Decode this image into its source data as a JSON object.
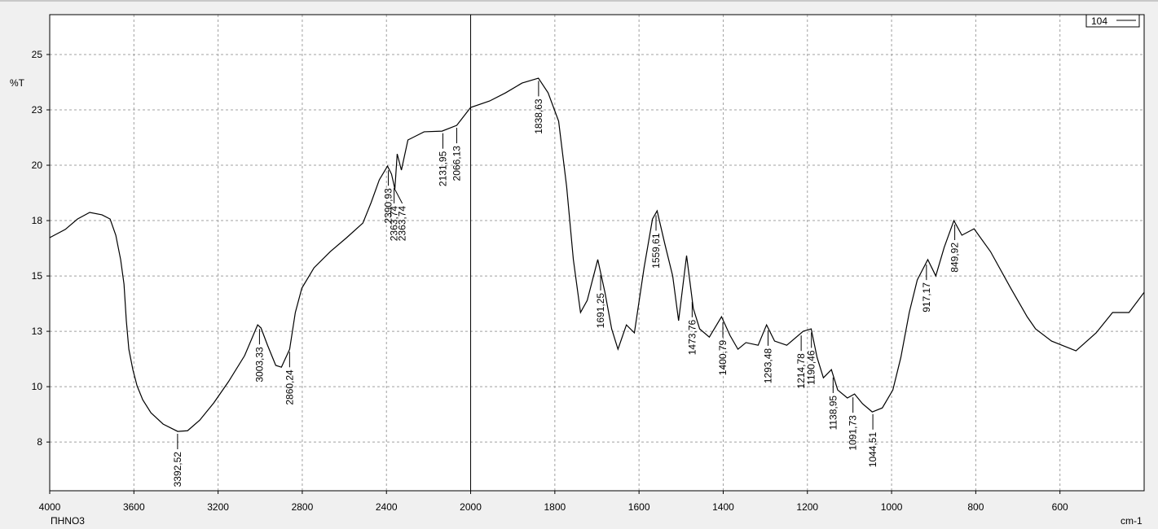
{
  "chart_data": {
    "type": "line",
    "x_label": "cm-1",
    "y_label": "%T",
    "sample_label": "ПHNO3",
    "xlim": [
      4000,
      400
    ],
    "x_break": {
      "at": 2000,
      "scale": 2
    },
    "xticks": [
      4000,
      3600,
      3200,
      2800,
      2400,
      2000,
      1800,
      1600,
      1400,
      1200,
      1000,
      800,
      600
    ],
    "ylim": [
      5.3,
      26.8
    ],
    "yticks": [
      {
        "value": 7.5,
        "label": "8"
      },
      10,
      {
        "value": 12.5,
        "label": "13"
      },
      15,
      {
        "value": 17.5,
        "label": "18"
      },
      20,
      {
        "value": 22.5,
        "label": "23"
      },
      25
    ],
    "grid": true,
    "legend_position": "top-right",
    "x": [
      4000,
      3926,
      3868,
      3810,
      3752,
      3713,
      3686,
      3663,
      3647,
      3636,
      3624,
      3605,
      3585,
      3558,
      3519,
      3461,
      3392,
      3345,
      3287,
      3221,
      3151,
      3074,
      3012,
      2996,
      2965,
      2926,
      2899,
      2860,
      2833,
      2802,
      2744,
      2667,
      2589,
      2512,
      2473,
      2434,
      2395,
      2376,
      2360,
      2349,
      2329,
      2298,
      2221,
      2136,
      2066,
      2000,
      1955,
      1917,
      1878,
      1839,
      1816,
      1791,
      1772,
      1756,
      1739,
      1723,
      1698,
      1681,
      1665,
      1650,
      1630,
      1611,
      1588,
      1568,
      1557,
      1539,
      1520,
      1506,
      1487,
      1471,
      1456,
      1433,
      1404,
      1384,
      1365,
      1346,
      1317,
      1297,
      1278,
      1249,
      1210,
      1191,
      1177,
      1162,
      1143,
      1128,
      1105,
      1088,
      1069,
      1046,
      1022,
      997,
      978,
      958,
      939,
      914,
      895,
      875,
      852,
      833,
      804,
      765,
      717,
      678,
      658,
      620,
      562,
      514,
      475,
      436,
      400
    ],
    "series": [
      {
        "name": "104",
        "color": "#000000",
        "values": [
          16.73,
          17.1,
          17.57,
          17.87,
          17.76,
          17.57,
          16.84,
          15.74,
          14.63,
          12.98,
          11.69,
          10.77,
          10.04,
          9.41,
          8.82,
          8.31,
          7.98,
          8.01,
          8.49,
          9.26,
          10.22,
          11.4,
          12.79,
          12.65,
          11.87,
          10.96,
          10.88,
          11.69,
          13.35,
          14.45,
          15.37,
          16.1,
          16.73,
          17.39,
          18.31,
          19.34,
          19.96,
          19.6,
          18.93,
          20.51,
          19.78,
          21.14,
          21.51,
          21.54,
          21.8,
          22.61,
          22.9,
          23.27,
          23.71,
          23.93,
          23.27,
          21.99,
          19.04,
          15.74,
          13.35,
          13.9,
          15.74,
          14.26,
          12.61,
          11.69,
          12.79,
          12.43,
          15.37,
          17.57,
          17.94,
          16.47,
          15.0,
          12.98,
          15.92,
          13.53,
          12.61,
          12.24,
          13.16,
          12.32,
          11.69,
          11.99,
          11.87,
          12.79,
          12.06,
          11.87,
          12.5,
          12.61,
          11.32,
          10.4,
          10.77,
          9.85,
          9.49,
          9.67,
          9.23,
          8.86,
          9.04,
          9.85,
          11.32,
          13.35,
          14.82,
          15.74,
          15.0,
          16.29,
          17.5,
          16.84,
          17.13,
          16.1,
          14.45,
          13.16,
          12.61,
          12.06,
          11.62,
          12.43,
          13.35,
          13.35,
          14.26
        ]
      }
    ],
    "annotations": [
      {
        "value": 3392.52,
        "label": "3392,52"
      },
      {
        "value": 3003.33,
        "label": "3003,33"
      },
      {
        "value": 2860.24,
        "label": "2860,24"
      },
      {
        "value": 2390.93,
        "label": "2390,93"
      },
      {
        "value": 2363.74,
        "label": "2363,74"
      },
      {
        "value": 2363.74,
        "label": "2363,74"
      },
      {
        "value": 2131.95,
        "label": "2131,95"
      },
      {
        "value": 2066.13,
        "label": "2066,13"
      },
      {
        "value": 1838.63,
        "label": "1838,63"
      },
      {
        "value": 1691.25,
        "label": "1691,25"
      },
      {
        "value": 1559.61,
        "label": "1559,61"
      },
      {
        "value": 1473.76,
        "label": "1473,76"
      },
      {
        "value": 1400.79,
        "label": "1400,79"
      },
      {
        "value": 1293.48,
        "label": "1293,48"
      },
      {
        "value": 1214.78,
        "label": "1214,78"
      },
      {
        "value": 1190.46,
        "label": "1190,46"
      },
      {
        "value": 1138.95,
        "label": "1138,95"
      },
      {
        "value": 1091.73,
        "label": "1091,73"
      },
      {
        "value": 1044.51,
        "label": "1044,51"
      },
      {
        "value": 917.17,
        "label": "917,17"
      },
      {
        "value": 849.92,
        "label": "849,92"
      }
    ]
  }
}
